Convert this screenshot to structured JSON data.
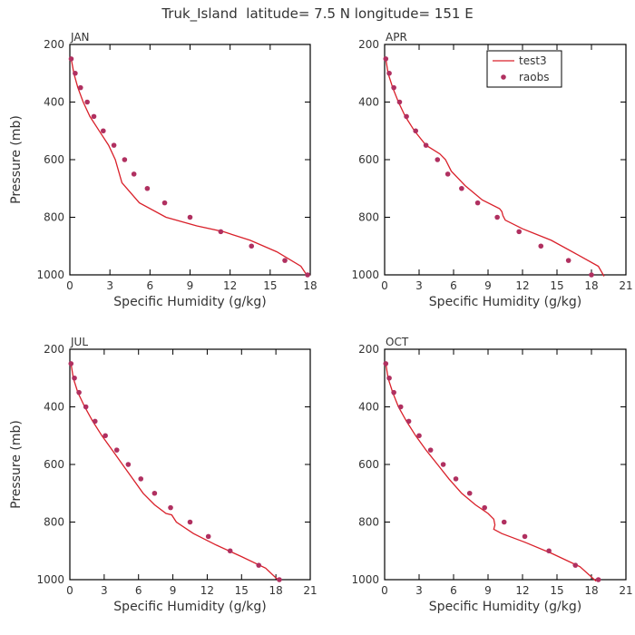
{
  "figure": {
    "title": "Truk_Island  latitude= 7.5 N longitude= 151 E",
    "line_color": "#d9202a",
    "point_color": "#b03060",
    "axis_color": "#000000",
    "text_color": "#333333"
  },
  "legend": {
    "line_label": "test3",
    "point_label": "raobs"
  },
  "chart_data": [
    {
      "type": "line",
      "panel_label": "JAN",
      "xlabel": "Specific Humidity (g/kg)",
      "ylabel": "Pressure (mb)",
      "xlim": [
        0,
        18
      ],
      "ylim": [
        1000,
        200
      ],
      "xticks": [
        0,
        3,
        6,
        9,
        12,
        15,
        18
      ],
      "yticks": [
        200,
        400,
        600,
        800,
        1000
      ],
      "series": [
        {
          "name": "test3",
          "style": "line",
          "x": [
            0.1,
            0.3,
            0.6,
            1.0,
            1.5,
            2.2,
            2.9,
            3.4,
            3.9,
            5.2,
            7.2,
            9.5,
            11.5,
            13.5,
            15.5,
            17.3,
            17.8
          ],
          "y": [
            250,
            300,
            350,
            400,
            450,
            500,
            550,
            600,
            680,
            750,
            800,
            830,
            850,
            880,
            920,
            970,
            1005
          ]
        },
        {
          "name": "raobs",
          "style": "points",
          "x": [
            0.1,
            0.4,
            0.8,
            1.3,
            1.8,
            2.5,
            3.3,
            4.1,
            4.8,
            5.8,
            7.1,
            9.0,
            11.3,
            13.6,
            16.1,
            17.8
          ],
          "y": [
            250,
            300,
            350,
            400,
            450,
            500,
            550,
            600,
            650,
            700,
            750,
            800,
            850,
            900,
            950,
            1000
          ]
        }
      ]
    },
    {
      "type": "line",
      "panel_label": "APR",
      "xlabel": "Specific Humidity (g/kg)",
      "ylabel": "",
      "xlim": [
        0,
        21
      ],
      "ylim": [
        1000,
        200
      ],
      "xticks": [
        0,
        3,
        6,
        9,
        12,
        15,
        18,
        21
      ],
      "yticks": [
        200,
        400,
        600,
        800,
        1000
      ],
      "legend": "top-right",
      "series": [
        {
          "name": "test3",
          "style": "line",
          "x": [
            0.1,
            0.3,
            0.7,
            1.2,
            1.8,
            2.6,
            3.6,
            4.8,
            5.3,
            5.8,
            7.0,
            8.5,
            10.0,
            10.2,
            10.3,
            10.5,
            12.0,
            14.5,
            16.8,
            18.6,
            19.1
          ],
          "y": [
            250,
            300,
            350,
            400,
            450,
            500,
            550,
            580,
            600,
            640,
            690,
            740,
            770,
            780,
            795,
            810,
            840,
            880,
            930,
            970,
            1005
          ]
        },
        {
          "name": "raobs",
          "style": "points",
          "x": [
            0.1,
            0.4,
            0.8,
            1.3,
            1.9,
            2.7,
            3.6,
            4.6,
            5.5,
            6.7,
            8.1,
            9.8,
            11.7,
            13.6,
            16.0,
            18.0
          ],
          "y": [
            250,
            300,
            350,
            400,
            450,
            500,
            550,
            600,
            650,
            700,
            750,
            800,
            850,
            900,
            950,
            1000
          ]
        }
      ]
    },
    {
      "type": "line",
      "panel_label": "JUL",
      "xlabel": "Specific Humidity (g/kg)",
      "ylabel": "Pressure (mb)",
      "xlim": [
        0,
        21
      ],
      "ylim": [
        1000,
        200
      ],
      "xticks": [
        0,
        3,
        6,
        9,
        12,
        15,
        18,
        21
      ],
      "yticks": [
        200,
        400,
        600,
        800,
        1000
      ],
      "series": [
        {
          "name": "test3",
          "style": "line",
          "x": [
            0.1,
            0.3,
            0.7,
            1.3,
            2.0,
            2.8,
            3.7,
            4.6,
            5.5,
            6.4,
            7.4,
            8.4,
            8.9,
            9.3,
            10.8,
            12.8,
            15.0,
            17.1,
            18.3
          ],
          "y": [
            250,
            300,
            350,
            400,
            450,
            500,
            550,
            600,
            650,
            700,
            740,
            770,
            775,
            800,
            840,
            880,
            920,
            960,
            1005
          ]
        },
        {
          "name": "raobs",
          "style": "points",
          "x": [
            0.1,
            0.4,
            0.8,
            1.4,
            2.2,
            3.1,
            4.1,
            5.1,
            6.2,
            7.4,
            8.8,
            10.5,
            12.1,
            14.0,
            16.5,
            18.3
          ],
          "y": [
            250,
            300,
            350,
            400,
            450,
            500,
            550,
            600,
            650,
            700,
            750,
            800,
            850,
            900,
            950,
            1000
          ]
        }
      ]
    },
    {
      "type": "line",
      "panel_label": "OCT",
      "xlabel": "Specific Humidity (g/kg)",
      "ylabel": "",
      "xlim": [
        0,
        21
      ],
      "ylim": [
        1000,
        200
      ],
      "xticks": [
        0,
        3,
        6,
        9,
        12,
        15,
        18,
        21
      ],
      "yticks": [
        200,
        400,
        600,
        800,
        1000
      ],
      "series": [
        {
          "name": "test3",
          "style": "line",
          "x": [
            0.1,
            0.3,
            0.7,
            1.2,
            1.9,
            2.7,
            3.6,
            4.6,
            5.6,
            6.7,
            7.9,
            9.0,
            9.5,
            9.6,
            9.5,
            10.2,
            12.2,
            14.6,
            17.0,
            18.4
          ],
          "y": [
            250,
            300,
            350,
            400,
            450,
            500,
            550,
            600,
            650,
            700,
            740,
            770,
            790,
            810,
            825,
            840,
            870,
            910,
            955,
            1005
          ]
        },
        {
          "name": "raobs",
          "style": "points",
          "x": [
            0.1,
            0.4,
            0.8,
            1.4,
            2.1,
            3.0,
            4.0,
            5.1,
            6.2,
            7.4,
            8.7,
            10.4,
            12.2,
            14.3,
            16.6,
            18.6
          ],
          "y": [
            250,
            300,
            350,
            400,
            450,
            500,
            550,
            600,
            650,
            700,
            750,
            800,
            850,
            900,
            950,
            1000
          ]
        }
      ]
    }
  ]
}
